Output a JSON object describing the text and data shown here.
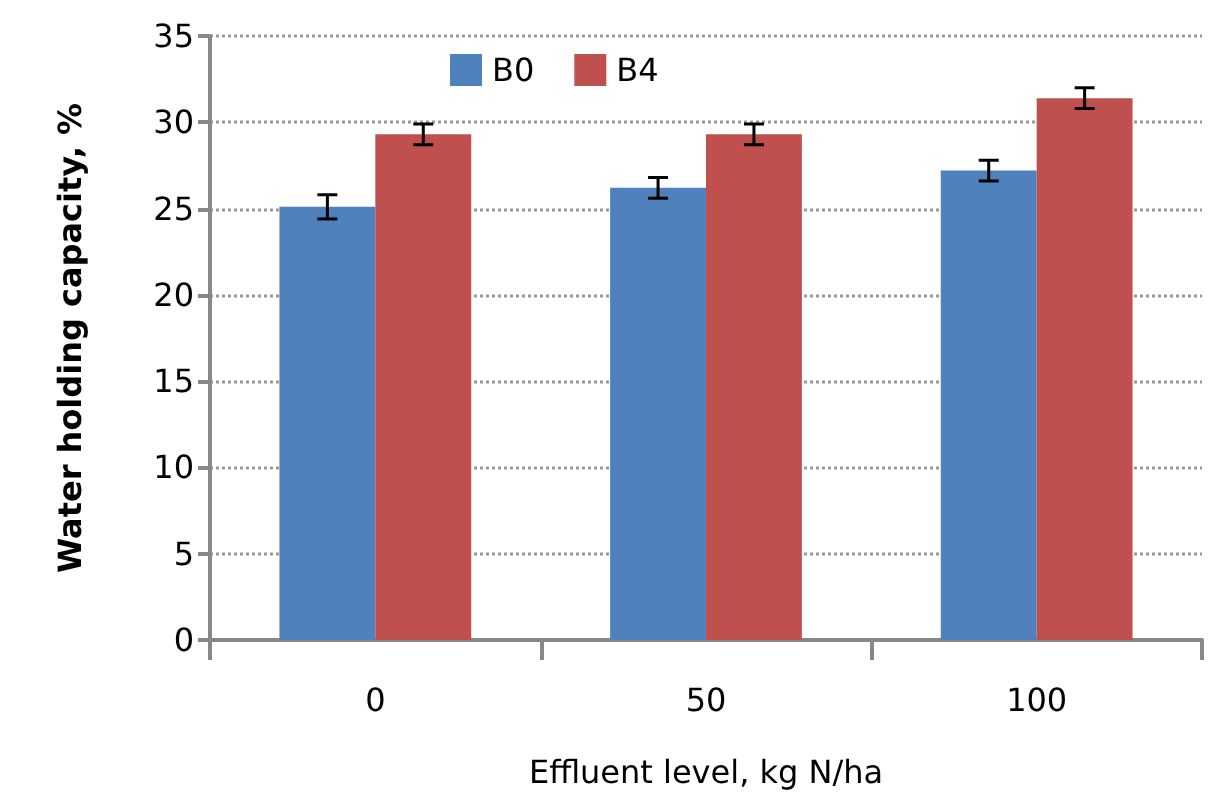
{
  "chart_data": {
    "type": "bar",
    "xlabel": "Effluent level, kg N/ha",
    "ylabel": "Water holding capacity, %",
    "categories": [
      "0",
      "50",
      "100"
    ],
    "series": [
      {
        "name": "B0",
        "color": "#4f81bd",
        "values": [
          25.1,
          26.2,
          27.2
        ],
        "errors": [
          0.7,
          0.6,
          0.6
        ]
      },
      {
        "name": "B4",
        "color": "#c0504d",
        "values": [
          29.3,
          29.3,
          31.4
        ],
        "errors": [
          0.6,
          0.6,
          0.6
        ]
      }
    ],
    "ylim": [
      0,
      35
    ],
    "yticks": [
      0,
      5,
      10,
      15,
      20,
      25,
      30,
      35
    ],
    "grid": "y",
    "legend": "top left"
  }
}
